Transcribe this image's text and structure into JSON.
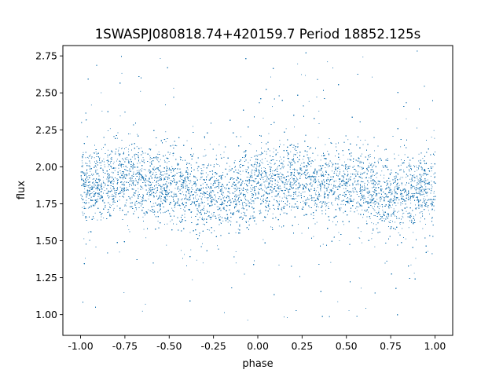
{
  "chart_data": {
    "type": "scatter",
    "title": "1SWASPJ080818.74+420159.7 Period 18852.125s",
    "xlabel": "phase",
    "ylabel": "flux",
    "xlim": [
      -1.1,
      1.1
    ],
    "ylim": [
      0.86,
      2.82
    ],
    "x_ticks": [
      "-1.00",
      "-0.75",
      "-0.50",
      "-0.25",
      "0.00",
      "0.25",
      "0.50",
      "0.75",
      "1.00"
    ],
    "x_tick_values": [
      -1.0,
      -0.75,
      -0.5,
      -0.25,
      0.0,
      0.25,
      0.5,
      0.75,
      1.0
    ],
    "y_ticks": [
      "1.00",
      "1.25",
      "1.50",
      "1.75",
      "2.00",
      "2.25",
      "2.50",
      "2.75"
    ],
    "y_tick_values": [
      1.0,
      1.25,
      1.5,
      1.75,
      2.0,
      2.25,
      2.5,
      2.75
    ],
    "grid": false,
    "legend": "none",
    "point_color": "#1f77b4",
    "series": [
      {
        "phase_range": [
          -1.0,
          1.0
        ],
        "flux_mean_profile": {
          "x": [
            -1.0,
            -0.75,
            -0.5,
            -0.25,
            0.0,
            0.25,
            0.5,
            0.75,
            1.0
          ],
          "y": [
            1.86,
            1.93,
            1.88,
            1.8,
            1.87,
            1.93,
            1.88,
            1.8,
            1.86
          ]
        },
        "flux_core_spread": 0.12,
        "flux_outlier_range": [
          0.96,
          2.79
        ]
      }
    ]
  }
}
